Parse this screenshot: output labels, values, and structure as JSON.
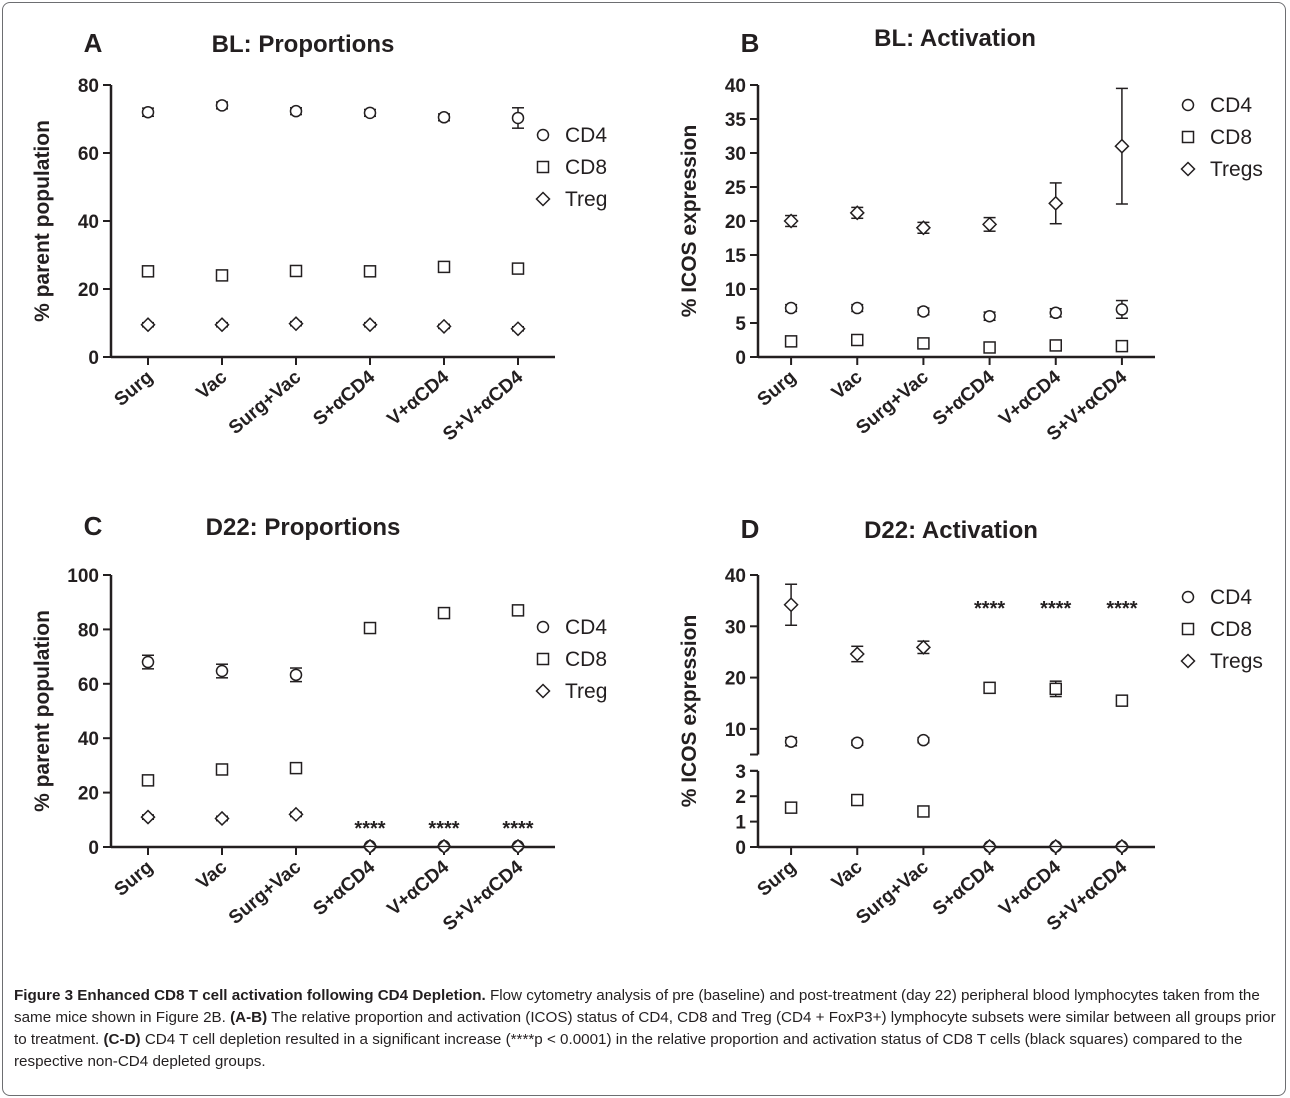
{
  "figure": {
    "caption_title": "Figure 3 Enhanced CD8 T cell activation following CD4 Depletion.",
    "caption_p1": " Flow cytometry analysis of pre (baseline) and post-treatment (day 22) peripheral blood lymphocytes taken from the same mice shown in Figure 2B. ",
    "caption_ref1": "(A-B)",
    "caption_p2": " The relative proportion and activation (ICOS) status of CD4, CD8 and Treg (CD4 + FoxP3+) lymphocyte subsets were similar between all groups prior to treatment. ",
    "caption_ref2": "(C-D)",
    "caption_p3": " CD4 T cell depletion resulted in a significant increase (****p < 0.0001) in the relative proportion and activation status of CD8 T cells (black squares) compared to the respective non-CD4 depleted groups."
  },
  "chart_data": [
    {
      "panel": "A",
      "type": "scatter",
      "title": "BL: Proportions",
      "ylabel": "% parent population",
      "categories": [
        "Surg",
        "Vac",
        "Surg+Vac",
        "S+αCD4",
        "V+αCD4",
        "S+V+αCD4"
      ],
      "ylim": [
        0,
        80
      ],
      "yticks": [
        0,
        20,
        40,
        60,
        80
      ],
      "legend_position": "right",
      "series": [
        {
          "name": "CD4",
          "marker": "circle",
          "values": [
            72,
            74,
            72.3,
            71.8,
            70.5,
            70.3
          ],
          "err": [
            1.2,
            1.0,
            1.0,
            1.0,
            1.0,
            3.0
          ]
        },
        {
          "name": "CD8",
          "marker": "square",
          "values": [
            25.2,
            24,
            25.3,
            25.2,
            26.5,
            26
          ],
          "err": [
            1.2,
            1.2,
            1.2,
            1.0,
            1.5,
            1.5
          ]
        },
        {
          "name": "Treg",
          "marker": "diamond",
          "values": [
            9.5,
            9.5,
            9.8,
            9.5,
            9,
            8.3
          ],
          "err": [
            0.6,
            0.6,
            0.6,
            0.6,
            0.6,
            0.6
          ]
        }
      ],
      "annotations": []
    },
    {
      "panel": "B",
      "type": "scatter",
      "title": "BL: Activation",
      "ylabel": "% ICOS expression",
      "categories": [
        "Surg",
        "Vac",
        "Surg+Vac",
        "S+αCD4",
        "V+αCD4",
        "S+V+αCD4"
      ],
      "ylim": [
        0,
        40
      ],
      "yticks": [
        0,
        5,
        10,
        15,
        20,
        25,
        30,
        35,
        40
      ],
      "legend_position": "right",
      "series": [
        {
          "name": "CD4",
          "marker": "circle",
          "values": [
            7.2,
            7.2,
            6.7,
            6,
            6.5,
            7
          ],
          "err": [
            0.5,
            0.5,
            0.5,
            0.6,
            0.6,
            1.3
          ]
        },
        {
          "name": "CD8",
          "marker": "square",
          "values": [
            2.3,
            2.5,
            2,
            1.4,
            1.7,
            1.6
          ],
          "err": [
            0.5,
            0.5,
            0.5,
            0.4,
            0.5,
            0.5
          ]
        },
        {
          "name": "Tregs",
          "marker": "diamond",
          "values": [
            20,
            21.2,
            19,
            19.5,
            22.6,
            31
          ],
          "err": [
            0.8,
            0.8,
            0.8,
            1.0,
            3.0,
            8.5
          ]
        }
      ],
      "annotations": []
    },
    {
      "panel": "C",
      "type": "scatter",
      "title": "D22: Proportions",
      "ylabel": "% parent population",
      "categories": [
        "Surg",
        "Vac",
        "Surg+Vac",
        "S+αCD4",
        "V+αCD4",
        "S+V+αCD4"
      ],
      "ylim": [
        0,
        100
      ],
      "yticks": [
        0,
        20,
        40,
        60,
        80,
        100
      ],
      "legend_position": "right",
      "series": [
        {
          "name": "CD4",
          "marker": "circle",
          "values": [
            68,
            64.7,
            63.3,
            0.3,
            0.3,
            0.3
          ],
          "err": [
            2.5,
            2.5,
            2.5,
            0.2,
            0.2,
            0.2
          ]
        },
        {
          "name": "CD8",
          "marker": "square",
          "values": [
            24.5,
            28.5,
            29,
            80.5,
            86,
            87
          ],
          "err": [
            1.8,
            1.8,
            1.8,
            1.2,
            1.2,
            1.2
          ]
        },
        {
          "name": "Treg",
          "marker": "diamond",
          "values": [
            11,
            10.5,
            12,
            0.2,
            0.2,
            0.2
          ],
          "err": [
            0.8,
            0.8,
            0.8,
            0.2,
            0.2,
            0.2
          ]
        }
      ],
      "annotations": [
        {
          "text": "****",
          "category": "S+αCD4"
        },
        {
          "text": "****",
          "category": "V+αCD4"
        },
        {
          "text": "****",
          "category": "S+V+αCD4"
        }
      ]
    },
    {
      "panel": "D",
      "type": "scatter",
      "title": "D22: Activation",
      "ylabel": "% ICOS expression",
      "categories": [
        "Surg",
        "Vac",
        "Surg+Vac",
        "S+αCD4",
        "V+αCD4",
        "S+V+αCD4"
      ],
      "ylim": [
        0,
        40
      ],
      "axis_break": [
        3,
        5
      ],
      "yticks": [
        0,
        1,
        2,
        3,
        10,
        20,
        30,
        40
      ],
      "legend_position": "right",
      "series": [
        {
          "name": "CD4",
          "marker": "circle",
          "values": [
            7.5,
            7.3,
            7.8,
            0.02,
            0.02,
            0.02
          ],
          "err": [
            0.8,
            0.5,
            0.5,
            0.02,
            0.02,
            0.02
          ]
        },
        {
          "name": "CD8",
          "marker": "square",
          "values": [
            1.55,
            1.85,
            1.4,
            18,
            17.8,
            15.5
          ],
          "err": [
            0.2,
            0.2,
            0.2,
            1.0,
            1.5,
            0.8
          ]
        },
        {
          "name": "Tregs",
          "marker": "diamond",
          "values": [
            34.2,
            24.6,
            25.9,
            0.02,
            0.02,
            0.02
          ],
          "err": [
            4.0,
            1.5,
            1.2,
            0.02,
            0.02,
            0.02
          ]
        }
      ],
      "annotations": [
        {
          "text": "****",
          "category": "S+αCD4"
        },
        {
          "text": "****",
          "category": "V+αCD4"
        },
        {
          "text": "****",
          "category": "S+V+αCD4"
        }
      ]
    }
  ]
}
